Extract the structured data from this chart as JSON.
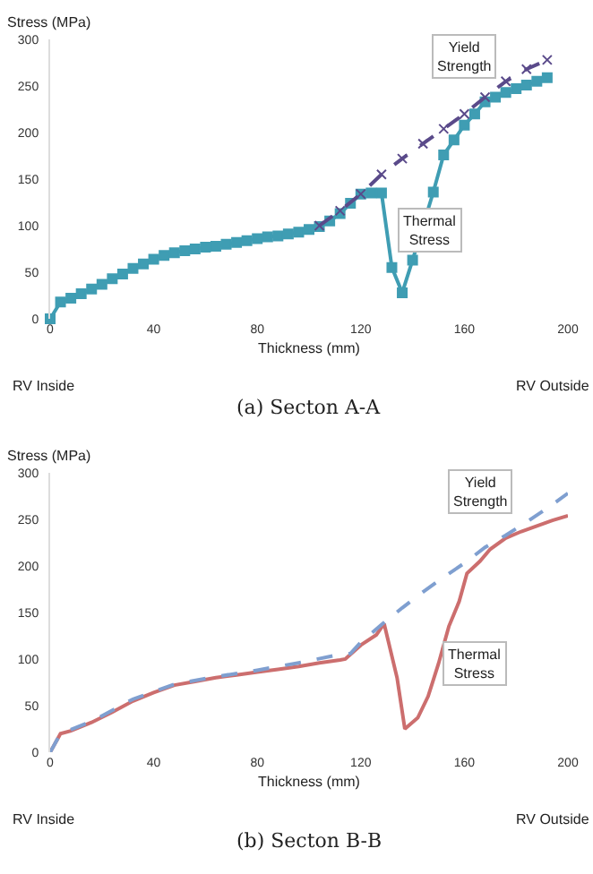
{
  "chart_data": [
    {
      "type": "line",
      "subtitle": "(a) Secton A-A",
      "xlabel": "Thickness (mm)",
      "ylabel": "Stress (MPa)",
      "xlim": [
        0,
        200
      ],
      "xticks": [
        0,
        40,
        80,
        120,
        160,
        200
      ],
      "ylim": [
        0,
        300
      ],
      "yticks": [
        0,
        50,
        100,
        150,
        200,
        250,
        300
      ],
      "grid": false,
      "series": [
        {
          "color": "#3f9db3",
          "marker": "square",
          "line_style": "solid",
          "x": [
            0,
            4,
            8,
            12,
            16,
            20,
            24,
            28,
            32,
            36,
            40,
            44,
            48,
            52,
            56,
            60,
            64,
            68,
            72,
            76,
            80,
            84,
            88,
            92,
            96,
            100,
            104,
            108,
            112,
            116,
            120,
            124,
            128,
            132,
            136,
            140,
            148,
            152,
            156,
            160,
            164,
            168,
            172,
            176,
            180,
            184,
            188,
            192
          ],
          "values": [
            0,
            18,
            22,
            27,
            32,
            37,
            43,
            48,
            54,
            59,
            64,
            68,
            71,
            73,
            75,
            77,
            78,
            80,
            82,
            84,
            86,
            88,
            89,
            91,
            93,
            96,
            99,
            105,
            113,
            124,
            134,
            135,
            135,
            55,
            28,
            63,
            136,
            176,
            192,
            208,
            220,
            233,
            238,
            243,
            247,
            251,
            255,
            259
          ]
        },
        {
          "color": "#5a4a8a",
          "marker": "cross",
          "line_style": "dashed",
          "x": [
            104,
            112,
            120,
            128,
            136,
            144,
            152,
            160,
            168,
            176,
            184,
            192
          ],
          "values": [
            100,
            116,
            134,
            155,
            172,
            188,
            204,
            220,
            238,
            255,
            268,
            278
          ]
        }
      ],
      "annotations": [
        "RV Inside",
        "RV Outside",
        {
          "text": "Yield Strength",
          "x": 160,
          "y": 282
        },
        {
          "text": "Thermal Stress",
          "x": 147,
          "y": 95
        }
      ]
    },
    {
      "type": "line",
      "subtitle": "(b) Secton B-B",
      "xlabel": "Thickness (mm)",
      "ylabel": "Stress (MPa)",
      "xlim": [
        0,
        200
      ],
      "xticks": [
        0,
        40,
        80,
        120,
        160,
        200
      ],
      "ylim": [
        0,
        300
      ],
      "yticks": [
        0,
        50,
        100,
        150,
        200,
        250,
        300
      ],
      "grid": false,
      "series": [
        {
          "color": "#cc6e6e",
          "marker": "none",
          "line_style": "solid",
          "x": [
            0,
            4,
            8,
            16,
            24,
            32,
            40,
            48,
            56,
            64,
            72,
            80,
            88,
            96,
            104,
            112,
            114,
            120,
            126,
            129,
            134,
            137,
            142,
            146,
            150,
            154,
            158,
            161,
            166,
            170,
            176,
            182,
            188,
            194,
            200
          ],
          "values": [
            0,
            20,
            23,
            32,
            43,
            55,
            64,
            72,
            76,
            80,
            83,
            86,
            89,
            92,
            96,
            99,
            100,
            115,
            126,
            138,
            80,
            25,
            37,
            60,
            95,
            135,
            162,
            192,
            205,
            218,
            230,
            237,
            243,
            249,
            254
          ]
        },
        {
          "color": "#7f9fd0",
          "marker": "none",
          "line_style": "dashed",
          "x": [
            0,
            4,
            16,
            32,
            48,
            64,
            80,
            96,
            112,
            116,
            120,
            128,
            136,
            144,
            152,
            160,
            168,
            176,
            184,
            192,
            200
          ],
          "values": [
            0,
            20,
            33,
            57,
            73,
            81,
            88,
            96,
            105,
            106,
            118,
            137,
            155,
            172,
            188,
            203,
            220,
            233,
            247,
            262,
            278
          ]
        }
      ],
      "annotations": [
        "RV Inside",
        "RV Outside",
        {
          "text": "Yield Strength",
          "x": 166,
          "y": 280
        },
        {
          "text": "Thermal Stress",
          "x": 164,
          "y": 95
        }
      ]
    }
  ]
}
